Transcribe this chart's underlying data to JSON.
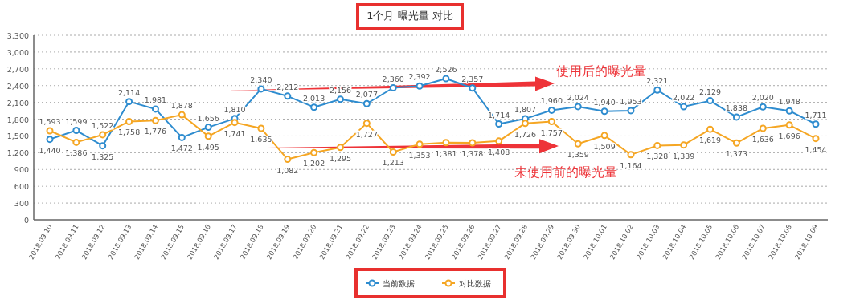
{
  "chart_data": {
    "type": "line",
    "title": "1个月 曝光量 对比",
    "categories": [
      "2018.09.10",
      "2018.09.11",
      "2018.09.12",
      "2018.09.13",
      "2018.09.14",
      "2018.09.15",
      "2018.09.16",
      "2018.09.17",
      "2018.09.18",
      "2018.09.19",
      "2018.09.20",
      "2018.09.21",
      "2018.09.22",
      "2018.09.23",
      "2018.09.24",
      "2018.09.25",
      "2018.09.26",
      "2018.09.27",
      "2018.09.28",
      "2018.09.29",
      "2018.09.30",
      "2018.10.01",
      "2018.10.02",
      "2018.10.03",
      "2018.10.04",
      "2018.10.05",
      "2018.10.06",
      "2018.10.07",
      "2018.10.08",
      "2018.10.09"
    ],
    "series": [
      {
        "name": "当前数据",
        "color": "#2e8ccf",
        "values": [
          1440,
          1599,
          1325,
          2114,
          1981,
          1472,
          1656,
          1810,
          2340,
          2212,
          2013,
          2156,
          2077,
          2360,
          2392,
          2526,
          2357,
          1714,
          1807,
          1960,
          2024,
          1940,
          1953,
          2321,
          2022,
          2129,
          1838,
          2020,
          1948,
          1711
        ],
        "value_labels": [
          "1,440",
          "1,599",
          "1,325",
          "2,114",
          "1,981",
          "1,472",
          "1,656",
          "1,810",
          "2,340",
          "2,212",
          "2,013",
          "2,156",
          "2,077",
          "2,360",
          "2,392",
          "2,526",
          "2,357",
          "1,714",
          "1,807",
          "1,960",
          "2,024",
          "1,940",
          "1,953",
          "2,321",
          "2,022",
          "2,129",
          "1,838",
          "2,020",
          "1,948",
          "1,711"
        ]
      },
      {
        "name": "对比数据",
        "color": "#f5a623",
        "values": [
          1593,
          1386,
          1522,
          1758,
          1776,
          1878,
          1495,
          1741,
          1635,
          1082,
          1202,
          1295,
          1727,
          1213,
          1353,
          1381,
          1378,
          1408,
          1726,
          1757,
          1359,
          1509,
          1164,
          1328,
          1339,
          1619,
          1373,
          1636,
          1696,
          1454
        ],
        "value_labels": [
          "1,593",
          "1,386",
          "1,522",
          "1,758",
          "1,776",
          "1,878",
          "1,495",
          "1,741",
          "1,635",
          "1,082",
          "1,202",
          "1,295",
          "1,727",
          "1,213",
          "1,353",
          "1,381",
          "1,378",
          "1,408",
          "1,726",
          "1,757",
          "1,359",
          "1,509",
          "1,164",
          "1,328",
          "1,339",
          "1,619",
          "1,373",
          "1,636",
          "1,696",
          "1,454"
        ]
      }
    ],
    "ylim": [
      0,
      3300
    ],
    "yticks": [
      0,
      300,
      600,
      900,
      {
        "value": 1200,
        "label": "1,200"
      },
      {
        "value": 1500,
        "label": "1,500"
      },
      {
        "value": 1800,
        "label": "1,800"
      },
      {
        "value": 2100,
        "label": "2,100"
      },
      {
        "value": 2400,
        "label": "2,400"
      },
      {
        "value": 2700,
        "label": "2,700"
      },
      {
        "value": 3000,
        "label": "3,000"
      },
      {
        "value": 3300,
        "label": "3,300"
      }
    ],
    "grid": "y",
    "legend": "bottom",
    "marker": "circle",
    "annotations": [
      "使用后的曝光量",
      "未使用前的曝光量"
    ]
  }
}
